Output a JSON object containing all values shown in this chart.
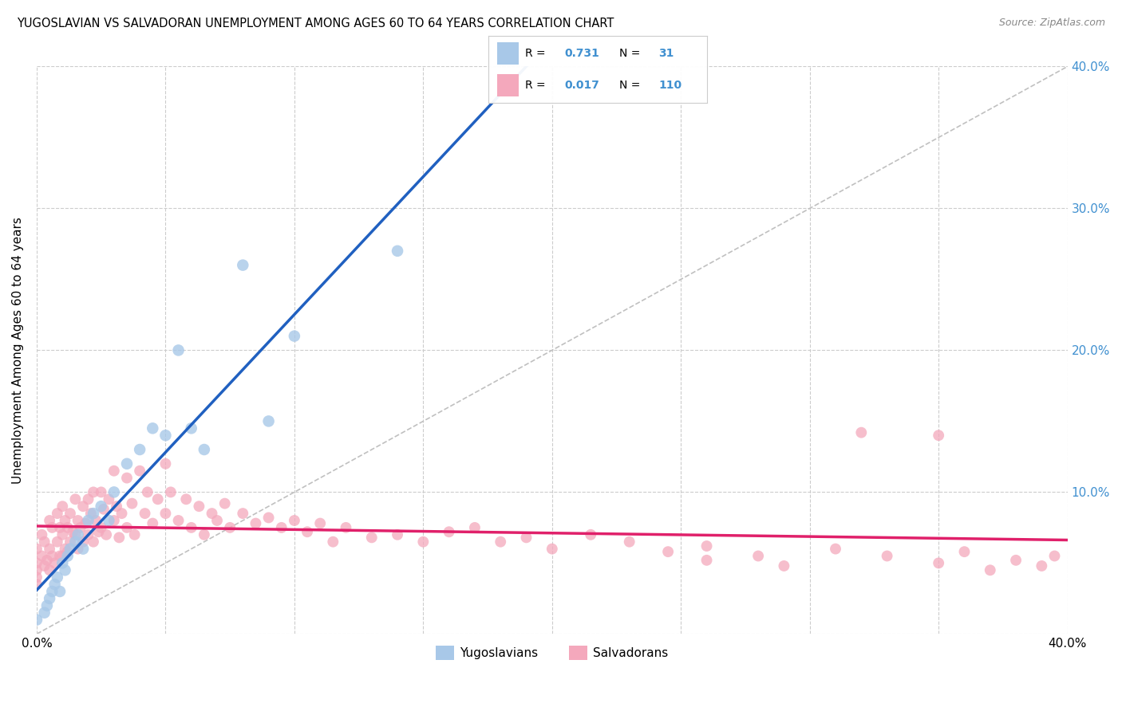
{
  "title": "YUGOSLAVIAN VS SALVADORAN UNEMPLOYMENT AMONG AGES 60 TO 64 YEARS CORRELATION CHART",
  "source": "Source: ZipAtlas.com",
  "ylabel": "Unemployment Among Ages 60 to 64 years",
  "xlim": [
    0.0,
    0.4
  ],
  "ylim": [
    0.0,
    0.4
  ],
  "yugo_color": "#a8c8e8",
  "salva_color": "#f4a8bc",
  "yugo_line_color": "#2060c0",
  "salva_line_color": "#e0206a",
  "diagonal_color": "#c0c0c0",
  "background_color": "#ffffff",
  "grid_color": "#cccccc",
  "legend_text_color": "#4090d0",
  "R_yugo": 0.731,
  "N_yugo": 31,
  "R_salva": 0.017,
  "N_salva": 110,
  "yugo_x": [
    0.0,
    0.003,
    0.004,
    0.005,
    0.006,
    0.007,
    0.008,
    0.009,
    0.01,
    0.011,
    0.012,
    0.013,
    0.015,
    0.016,
    0.018,
    0.02,
    0.022,
    0.025,
    0.028,
    0.03,
    0.035,
    0.04,
    0.045,
    0.05,
    0.055,
    0.06,
    0.065,
    0.08,
    0.09,
    0.1,
    0.14
  ],
  "yugo_y": [
    0.01,
    0.015,
    0.02,
    0.025,
    0.03,
    0.035,
    0.04,
    0.03,
    0.05,
    0.045,
    0.055,
    0.06,
    0.065,
    0.07,
    0.06,
    0.08,
    0.085,
    0.09,
    0.08,
    0.1,
    0.12,
    0.13,
    0.145,
    0.14,
    0.2,
    0.145,
    0.13,
    0.26,
    0.15,
    0.21,
    0.27
  ],
  "salva_x": [
    0.0,
    0.0,
    0.0,
    0.0,
    0.0,
    0.002,
    0.002,
    0.003,
    0.003,
    0.004,
    0.005,
    0.005,
    0.005,
    0.006,
    0.006,
    0.007,
    0.008,
    0.008,
    0.009,
    0.009,
    0.01,
    0.01,
    0.01,
    0.011,
    0.011,
    0.012,
    0.012,
    0.013,
    0.013,
    0.014,
    0.015,
    0.015,
    0.016,
    0.016,
    0.017,
    0.018,
    0.018,
    0.019,
    0.02,
    0.02,
    0.021,
    0.022,
    0.022,
    0.023,
    0.024,
    0.025,
    0.025,
    0.026,
    0.027,
    0.028,
    0.03,
    0.03,
    0.031,
    0.032,
    0.033,
    0.035,
    0.035,
    0.037,
    0.038,
    0.04,
    0.042,
    0.043,
    0.045,
    0.047,
    0.05,
    0.05,
    0.052,
    0.055,
    0.058,
    0.06,
    0.063,
    0.065,
    0.068,
    0.07,
    0.073,
    0.075,
    0.08,
    0.085,
    0.09,
    0.095,
    0.1,
    0.105,
    0.11,
    0.115,
    0.12,
    0.13,
    0.14,
    0.15,
    0.16,
    0.17,
    0.18,
    0.19,
    0.2,
    0.215,
    0.23,
    0.245,
    0.26,
    0.28,
    0.31,
    0.33,
    0.35,
    0.36,
    0.37,
    0.38,
    0.39,
    0.395,
    0.35,
    0.32,
    0.29,
    0.26
  ],
  "salva_y": [
    0.06,
    0.05,
    0.045,
    0.04,
    0.035,
    0.07,
    0.055,
    0.065,
    0.048,
    0.052,
    0.08,
    0.06,
    0.045,
    0.075,
    0.055,
    0.05,
    0.085,
    0.065,
    0.075,
    0.055,
    0.09,
    0.07,
    0.055,
    0.08,
    0.06,
    0.075,
    0.058,
    0.085,
    0.065,
    0.072,
    0.095,
    0.07,
    0.08,
    0.06,
    0.075,
    0.09,
    0.065,
    0.078,
    0.095,
    0.07,
    0.085,
    0.1,
    0.065,
    0.08,
    0.072,
    0.1,
    0.075,
    0.088,
    0.07,
    0.095,
    0.115,
    0.08,
    0.09,
    0.068,
    0.085,
    0.11,
    0.075,
    0.092,
    0.07,
    0.115,
    0.085,
    0.1,
    0.078,
    0.095,
    0.12,
    0.085,
    0.1,
    0.08,
    0.095,
    0.075,
    0.09,
    0.07,
    0.085,
    0.08,
    0.092,
    0.075,
    0.085,
    0.078,
    0.082,
    0.075,
    0.08,
    0.072,
    0.078,
    0.065,
    0.075,
    0.068,
    0.07,
    0.065,
    0.072,
    0.075,
    0.065,
    0.068,
    0.06,
    0.07,
    0.065,
    0.058,
    0.062,
    0.055,
    0.06,
    0.055,
    0.05,
    0.058,
    0.045,
    0.052,
    0.048,
    0.055,
    0.14,
    0.142,
    0.048,
    0.052
  ]
}
